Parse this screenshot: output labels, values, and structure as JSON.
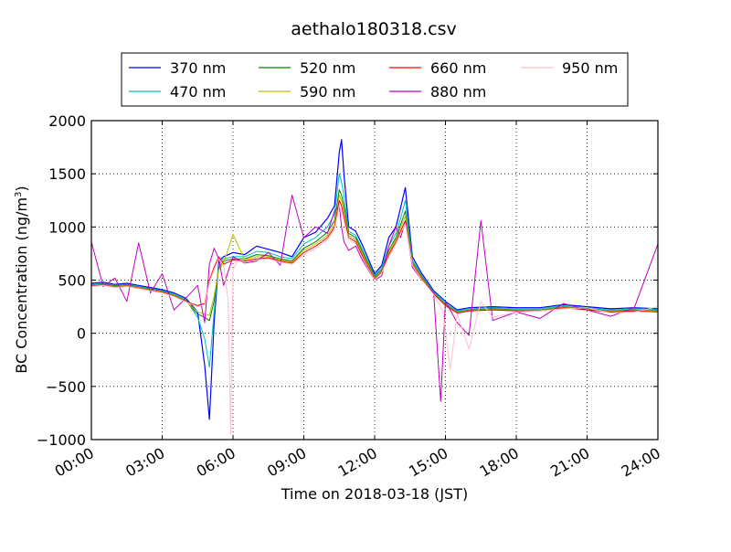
{
  "chart_data": {
    "type": "line",
    "title": "aethalo180318.csv",
    "xlabel": "Time on 2018-03-18 (JST)",
    "ylabel": "BC Concentration (ng/m",
    "ylabel_sup": "3",
    "ylabel_end": ")",
    "x_unit": "hours",
    "xlim": [
      0,
      24
    ],
    "ylim": [
      -1000,
      2000
    ],
    "grid": true,
    "legend_position": "top-center",
    "xticks": [
      {
        "value": 0,
        "label": "00:00"
      },
      {
        "value": 3,
        "label": "03:00"
      },
      {
        "value": 6,
        "label": "06:00"
      },
      {
        "value": 9,
        "label": "09:00"
      },
      {
        "value": 12,
        "label": "12:00"
      },
      {
        "value": 15,
        "label": "15:00"
      },
      {
        "value": 18,
        "label": "18:00"
      },
      {
        "value": 21,
        "label": "21:00"
      },
      {
        "value": 24,
        "label": "24:00"
      }
    ],
    "yticks": [
      {
        "value": 2000,
        "label": "2000"
      },
      {
        "value": 1500,
        "label": "1500"
      },
      {
        "value": 1000,
        "label": "1000"
      },
      {
        "value": 500,
        "label": "500"
      },
      {
        "value": 0,
        "label": "0"
      },
      {
        "value": -500,
        "label": "−500"
      },
      {
        "value": -1000,
        "label": "−1000"
      }
    ],
    "series": [
      {
        "name": "370 nm",
        "color": "#0000ff",
        "width": 1.2,
        "x": [
          0,
          0.5,
          1,
          1.5,
          2,
          2.5,
          3,
          3.5,
          4,
          4.5,
          4.8,
          5,
          5.2,
          5.4,
          5.6,
          6,
          6.5,
          7,
          7.5,
          8,
          8.5,
          9,
          9.5,
          10,
          10.3,
          10.5,
          10.6,
          10.7,
          10.9,
          11.2,
          11.5,
          12,
          12.3,
          12.6,
          12.9,
          13.1,
          13.3,
          13.6,
          14,
          14.5,
          15,
          15.5,
          16,
          17,
          18,
          19,
          20,
          21,
          22,
          23,
          24
        ],
        "y": [
          470,
          480,
          460,
          470,
          450,
          430,
          410,
          380,
          330,
          200,
          -300,
          -810,
          100,
          680,
          720,
          760,
          740,
          820,
          790,
          760,
          720,
          900,
          950,
          1080,
          1200,
          1700,
          1820,
          1500,
          1000,
          960,
          820,
          560,
          640,
          900,
          1000,
          1180,
          1370,
          720,
          560,
          400,
          300,
          220,
          240,
          250,
          240,
          240,
          270,
          250,
          230,
          240,
          230
        ]
      },
      {
        "name": "470 nm",
        "color": "#00bfbf",
        "width": 1.0,
        "x": [
          0,
          0.5,
          1,
          1.5,
          2,
          2.5,
          3,
          3.5,
          4,
          4.5,
          4.8,
          5,
          5.2,
          5.4,
          5.6,
          6,
          6.5,
          7,
          7.5,
          8,
          8.5,
          9,
          9.5,
          10,
          10.3,
          10.5,
          10.6,
          10.7,
          10.9,
          11.2,
          11.5,
          12,
          12.3,
          12.6,
          12.9,
          13.1,
          13.3,
          13.6,
          14,
          14.5,
          15,
          15.5,
          16,
          17,
          18,
          19,
          20,
          21,
          22,
          23,
          24
        ],
        "y": [
          460,
          470,
          450,
          460,
          440,
          420,
          400,
          370,
          320,
          150,
          -50,
          -320,
          200,
          650,
          700,
          720,
          720,
          770,
          760,
          720,
          700,
          840,
          900,
          1000,
          1120,
          1500,
          1420,
          1300,
          960,
          920,
          780,
          540,
          620,
          820,
          940,
          1080,
          1250,
          690,
          540,
          390,
          280,
          210,
          230,
          240,
          230,
          230,
          260,
          240,
          220,
          230,
          220
        ]
      },
      {
        "name": "520 nm",
        "color": "#008000",
        "width": 1.0,
        "x": [
          0,
          0.5,
          1,
          1.5,
          2,
          2.5,
          3,
          3.5,
          4,
          4.5,
          4.8,
          5,
          5.2,
          5.4,
          5.6,
          6,
          6.5,
          7,
          7.5,
          8,
          8.5,
          9,
          9.5,
          10,
          10.3,
          10.5,
          10.6,
          10.7,
          10.9,
          11.2,
          11.5,
          12,
          12.3,
          12.6,
          12.9,
          13.1,
          13.3,
          13.6,
          14,
          14.5,
          15,
          15.5,
          16,
          17,
          18,
          19,
          20,
          21,
          22,
          23,
          24
        ],
        "y": [
          455,
          465,
          445,
          455,
          435,
          415,
          395,
          360,
          310,
          180,
          150,
          120,
          300,
          620,
          680,
          700,
          700,
          740,
          730,
          700,
          680,
          800,
          860,
          950,
          1060,
          1350,
          1300,
          1200,
          940,
          900,
          760,
          530,
          600,
          780,
          900,
          1020,
          1150,
          670,
          530,
          380,
          270,
          200,
          220,
          230,
          220,
          220,
          250,
          230,
          210,
          220,
          210
        ]
      },
      {
        "name": "590 nm",
        "color": "#bfbf00",
        "width": 1.0,
        "x": [
          0,
          0.5,
          1,
          1.5,
          2,
          2.5,
          3,
          3.5,
          4,
          4.5,
          4.8,
          5,
          5.2,
          5.4,
          5.6,
          6,
          6.5,
          7,
          7.5,
          8,
          8.5,
          9,
          9.5,
          10,
          10.3,
          10.5,
          10.6,
          10.7,
          10.9,
          11.2,
          11.5,
          12,
          12.3,
          12.6,
          12.9,
          13.1,
          13.3,
          13.6,
          14,
          14.5,
          15,
          15.5,
          16,
          17,
          18,
          19,
          20,
          21,
          22,
          23,
          24
        ],
        "y": [
          450,
          460,
          440,
          450,
          430,
          410,
          390,
          355,
          305,
          200,
          180,
          170,
          350,
          600,
          660,
          930,
          690,
          720,
          720,
          690,
          670,
          780,
          840,
          920,
          1030,
          1300,
          1250,
          1150,
          920,
          880,
          740,
          520,
          590,
          760,
          880,
          990,
          1100,
          660,
          520,
          375,
          265,
          195,
          215,
          225,
          215,
          215,
          245,
          225,
          205,
          215,
          205
        ]
      },
      {
        "name": "660 nm",
        "color": "#ff0000",
        "width": 1.0,
        "x": [
          0,
          0.5,
          1,
          1.5,
          2,
          2.5,
          3,
          3.5,
          4,
          4.5,
          4.8,
          5,
          5.2,
          5.4,
          5.6,
          6,
          6.5,
          7,
          7.5,
          8,
          8.5,
          9,
          9.5,
          10,
          10.3,
          10.5,
          10.6,
          10.7,
          10.9,
          11.2,
          11.5,
          12,
          12.3,
          12.6,
          12.9,
          13.1,
          13.3,
          13.6,
          14,
          14.5,
          15,
          15.5,
          16,
          17,
          18,
          19,
          20,
          21,
          22,
          23,
          24
        ],
        "y": [
          445,
          455,
          435,
          445,
          425,
          405,
          385,
          350,
          300,
          260,
          280,
          500,
          620,
          720,
          650,
          690,
          680,
          700,
          710,
          680,
          660,
          760,
          820,
          900,
          1000,
          1250,
          1200,
          1100,
          900,
          860,
          720,
          510,
          580,
          740,
          860,
          960,
          1060,
          650,
          510,
          370,
          260,
          190,
          210,
          220,
          210,
          210,
          240,
          220,
          200,
          210,
          200
        ]
      },
      {
        "name": "880 nm",
        "color": "#bf00bf",
        "width": 1.0,
        "x": [
          0,
          0.5,
          1,
          1.5,
          2,
          2.5,
          3,
          3.5,
          4,
          4.5,
          4.8,
          5,
          5.2,
          5.4,
          5.6,
          6,
          6.5,
          7,
          7.5,
          8,
          8.5,
          9,
          9.5,
          10,
          10.3,
          10.5,
          10.6,
          10.7,
          10.9,
          11.2,
          11.5,
          12,
          12.3,
          12.6,
          12.9,
          13.1,
          13.3,
          13.6,
          14,
          14.5,
          14.8,
          15,
          15.5,
          16,
          16.5,
          17,
          18,
          19,
          20,
          21,
          22,
          23,
          24
        ],
        "y": [
          860,
          440,
          520,
          300,
          850,
          380,
          560,
          220,
          330,
          450,
          100,
          650,
          800,
          700,
          450,
          720,
          660,
          680,
          760,
          640,
          1300,
          900,
          1000,
          940,
          1150,
          1200,
          1000,
          860,
          780,
          820,
          680,
          500,
          540,
          820,
          1000,
          900,
          1050,
          620,
          500,
          380,
          -640,
          300,
          100,
          -20,
          1060,
          120,
          200,
          140,
          280,
          220,
          160,
          240,
          840
        ]
      },
      {
        "name": "950 nm",
        "color": "#ffc0cb",
        "width": 1.0,
        "x": [
          0,
          0.5,
          1,
          1.5,
          2,
          2.5,
          3,
          3.5,
          4,
          4.5,
          4.8,
          5,
          5.2,
          5.4,
          5.6,
          5.8,
          5.9,
          6,
          6.2,
          6.5,
          7,
          7.5,
          8,
          8.5,
          9,
          9.5,
          10,
          10.3,
          10.5,
          10.6,
          10.7,
          10.9,
          11.2,
          11.5,
          12,
          12.3,
          12.6,
          12.9,
          13.1,
          13.3,
          13.6,
          14,
          14.5,
          14.9,
          15.2,
          15.5,
          16,
          16.5,
          17,
          18,
          19,
          20,
          21,
          22,
          23,
          24
        ],
        "y": [
          440,
          450,
          430,
          440,
          420,
          400,
          380,
          345,
          295,
          250,
          270,
          480,
          600,
          700,
          640,
          300,
          -950,
          600,
          680,
          670,
          690,
          700,
          670,
          650,
          740,
          800,
          880,
          980,
          1200,
          1150,
          1050,
          880,
          840,
          700,
          500,
          570,
          720,
          840,
          940,
          1030,
          640,
          500,
          365,
          200,
          -340,
          180,
          -150,
          300,
          150,
          200,
          210,
          230,
          240,
          190,
          200,
          250
        ]
      }
    ]
  }
}
